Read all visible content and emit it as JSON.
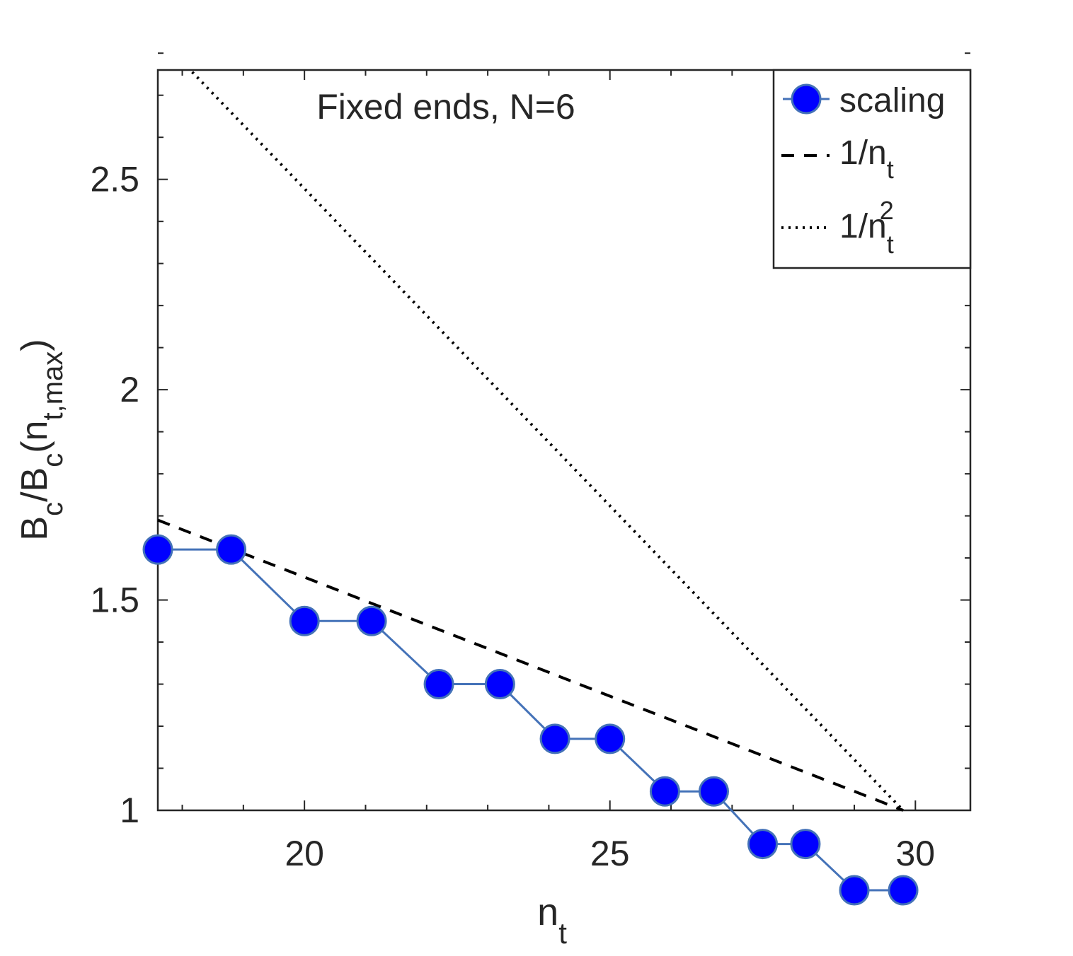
{
  "chart_data": {
    "type": "line",
    "annotation": "Fixed ends, N=6",
    "xlabel": {
      "main": "n",
      "sub": "t"
    },
    "ylabel": {
      "main": "B",
      "sub1": "c",
      "mid": "/B",
      "sub2": "c",
      "open": "(n",
      "sub3": "t,max",
      "close": ")"
    },
    "xlim": [
      17.6,
      30.9
    ],
    "ylim": [
      1,
      2.76
    ],
    "xticks": [
      20,
      25,
      30
    ],
    "xtick_labels": [
      "20",
      "25",
      "30"
    ],
    "yticks": [
      1,
      1.5,
      2,
      2.5
    ],
    "ytick_labels": [
      "1",
      "1.5",
      "2",
      "2.5"
    ],
    "x_minor_tick_step": 1,
    "y_minor_tick_step": 0.1,
    "grid": false,
    "legend_position": "top-right",
    "legend": [
      {
        "label": "scaling",
        "style": "line-marker"
      },
      {
        "label": "1/n",
        "sub": "t",
        "style": "dashed"
      },
      {
        "label": "1/n",
        "sub": "t",
        "sup": "2",
        "style": "dotted"
      }
    ],
    "series": [
      {
        "name": "scaling",
        "style": "line-marker",
        "color": "#4472b8",
        "marker_color": "#0000ff",
        "x": [
          17.6,
          18.8,
          20,
          21.1,
          22.2,
          23.2,
          24.1,
          25,
          25.9,
          26.7,
          27.5,
          28.2,
          29,
          29.8
        ],
        "y": [
          1.62,
          1.62,
          1.45,
          1.45,
          1.3,
          1.3,
          1.17,
          1.17,
          1.045,
          1.045,
          0.92,
          0.92,
          0.81,
          0.81
        ]
      },
      {
        "name": "1/n_t",
        "style": "dashed",
        "color": "#000000",
        "x": [
          17.6,
          29.8
        ],
        "y": [
          1.69,
          1.0
        ]
      },
      {
        "name": "1/n_t^2",
        "style": "dotted",
        "color": "#000000",
        "x": [
          17.6,
          29.8
        ],
        "y": [
          2.84,
          1.0
        ]
      }
    ]
  }
}
